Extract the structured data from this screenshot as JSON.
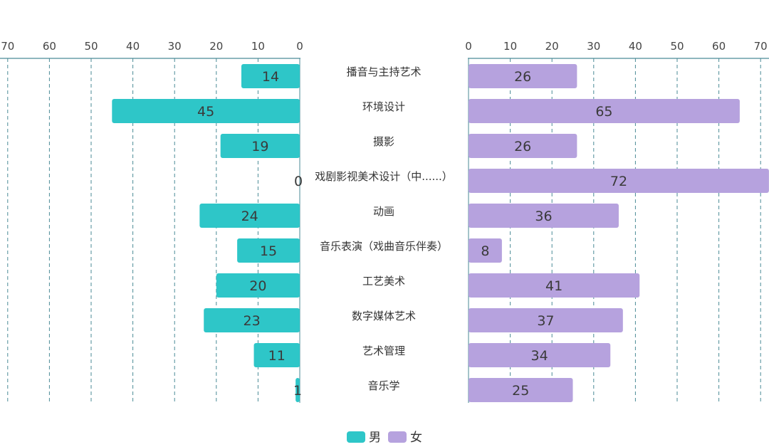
{
  "chart_data": {
    "type": "bar",
    "orientation": "horizontal-butterfly",
    "categories": [
      "播音与主持艺术",
      "环境设计",
      "摄影",
      "戏剧影视美术设计（中......）",
      "动画",
      "音乐表演（戏曲音乐伴奏）",
      "工艺美术",
      "数字媒体艺术",
      "艺术管理",
      "音乐学"
    ],
    "series": [
      {
        "name": "男",
        "side": "left",
        "color": "#2ec6c8",
        "values": [
          14,
          45,
          19,
          0,
          24,
          15,
          20,
          23,
          11,
          1
        ]
      },
      {
        "name": "女",
        "side": "right",
        "color": "#b6a2de",
        "values": [
          26,
          65,
          26,
          72,
          36,
          8,
          41,
          37,
          34,
          25
        ]
      }
    ],
    "xlim": [
      0,
      70
    ],
    "ticks": [
      0,
      10,
      20,
      30,
      40,
      50,
      60,
      70
    ],
    "grid": true,
    "legend": {
      "position": "bottom-center"
    },
    "colors": {
      "axis": "#4a8a96",
      "grid": "#4a8a96"
    }
  }
}
